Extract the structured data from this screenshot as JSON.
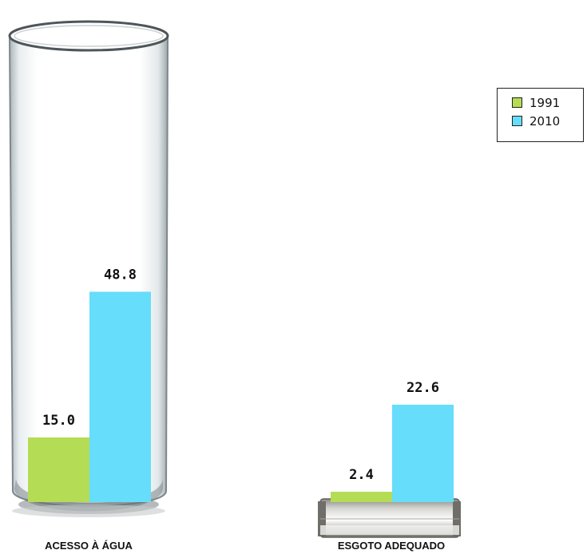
{
  "colors": {
    "series_1991": "#b4dc55",
    "series_2010": "#66ddfa"
  },
  "icons": {
    "group_0": "glass-of-water-icon",
    "group_1": "sewer-pipe-icon"
  },
  "chart_data": {
    "type": "bar",
    "categories": [
      "ACESSO À ÁGUA",
      "ESGOTO ADEQUADO"
    ],
    "series": [
      {
        "name": "1991",
        "values": [
          15.0,
          2.4
        ]
      },
      {
        "name": "2010",
        "values": [
          48.8,
          22.6
        ]
      }
    ],
    "value_labels": [
      [
        "15.0",
        "2.4"
      ],
      [
        "48.8",
        "22.6"
      ]
    ],
    "title": "",
    "xlabel": "",
    "ylabel": "",
    "ylim": [
      0,
      76
    ],
    "grid": false,
    "legend": "top-right"
  }
}
